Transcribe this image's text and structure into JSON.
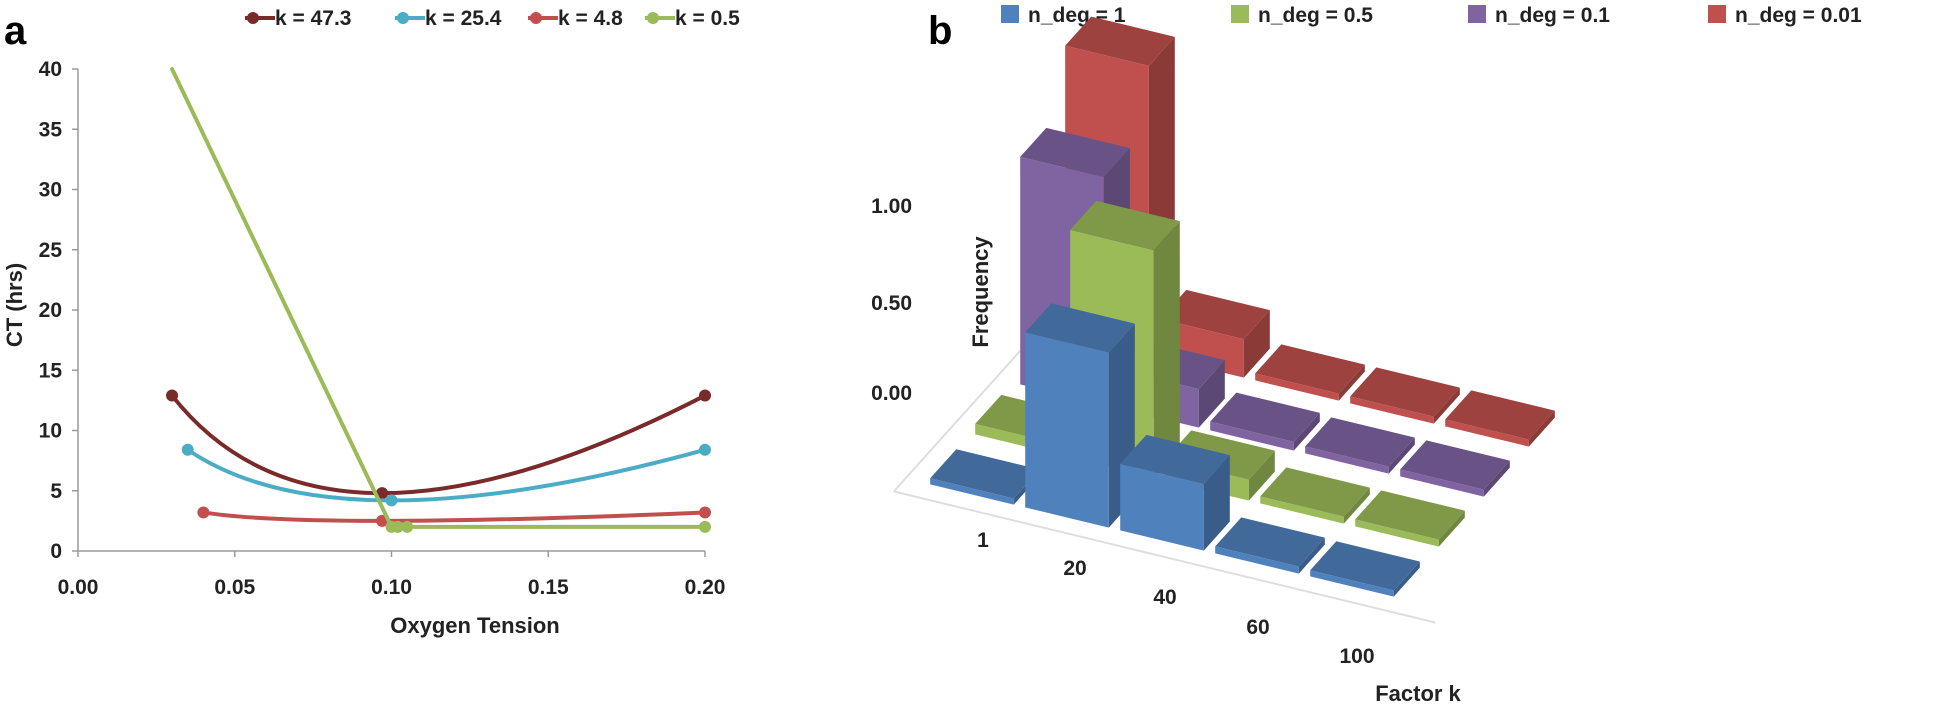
{
  "panels": {
    "a": "a",
    "b": "b"
  },
  "chart_data": [
    {
      "type": "line",
      "panel": "a",
      "title": "",
      "xlabel": "Oxygen Tension",
      "ylabel": "CT (hrs)",
      "xlim": [
        0.0,
        0.2
      ],
      "ylim": [
        0,
        40
      ],
      "x_ticks": [
        "0.00",
        "0.05",
        "0.10",
        "0.15",
        "0.20"
      ],
      "y_ticks": [
        "0",
        "5",
        "10",
        "15",
        "20",
        "25",
        "30",
        "35",
        "40"
      ],
      "legend_position": "top",
      "series": [
        {
          "name": "k = 47.3",
          "color": "#7b2a2a",
          "smooth": true,
          "x": [
            0.03,
            0.097,
            0.2
          ],
          "y": [
            12.9,
            4.8,
            12.9
          ]
        },
        {
          "name": "k = 25.4",
          "color": "#4bacc6",
          "smooth": true,
          "x": [
            0.035,
            0.1,
            0.2
          ],
          "y": [
            8.4,
            4.2,
            8.4
          ]
        },
        {
          "name": "k = 4.8",
          "color": "#c0504d",
          "smooth": true,
          "x": [
            0.04,
            0.097,
            0.2
          ],
          "y": [
            3.2,
            2.5,
            3.2
          ]
        },
        {
          "name": "k = 0.5",
          "color": "#9bbb59",
          "smooth": false,
          "x": [
            0.03,
            0.1,
            0.102,
            0.105,
            0.2
          ],
          "y": [
            40,
            2.0,
            2.0,
            2.0,
            2.0
          ]
        }
      ]
    },
    {
      "type": "bar",
      "panel": "b",
      "title": "",
      "xlabel": "Factor k",
      "ylabel": "Frequency",
      "categories": [
        "1",
        "20",
        "40",
        "60",
        "100"
      ],
      "y_ticks": [
        "0.00",
        "0.50",
        "1.00"
      ],
      "legend_position": "top",
      "series": [
        {
          "name": "n_deg = 1",
          "color": "#4f81bd",
          "values": [
            0.0,
            1.0,
            0.38,
            0.04,
            0.03
          ]
        },
        {
          "name": "n_deg = 0.5",
          "color": "#9bbb59",
          "values": [
            0.06,
            1.3,
            0.12,
            0.04,
            0.04
          ]
        },
        {
          "name": "n_deg = 0.1",
          "color": "#8064a2",
          "values": [
            1.3,
            0.22,
            0.05,
            0.04,
            0.04
          ]
        },
        {
          "name": "n_deg = 0.01",
          "color": "#c0504d",
          "values": [
            1.65,
            0.22,
            0.04,
            0.04,
            0.04
          ]
        }
      ]
    }
  ]
}
